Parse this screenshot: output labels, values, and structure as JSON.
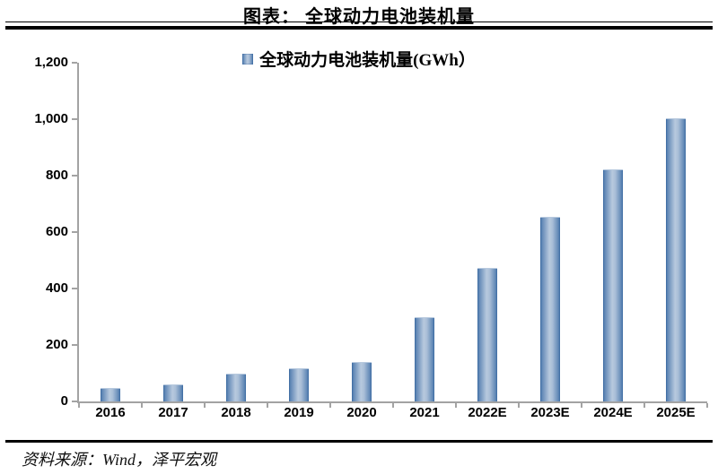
{
  "header": {
    "title": "图表：  全球动力电池装机量"
  },
  "legend": {
    "label": "全球动力电池装机量(GWh）",
    "swatch": "blue-gradient-square"
  },
  "footer": {
    "source": "资料来源：Wind，泽平宏观"
  },
  "colors": {
    "bar_edge": "#38679f",
    "bar_mid_dark": "#5d85b4",
    "bar_center_light": "#b7c9de",
    "bar_center_shade": "#a9bed7",
    "axis": "#a3a3a3",
    "text": "#000000"
  },
  "chart_data": {
    "type": "bar",
    "title": "全球动力电池装机量",
    "legend_entries": [
      "全球动力电池装机量(GWh）"
    ],
    "legend_position": "top-center",
    "categories": [
      "2016",
      "2017",
      "2018",
      "2019",
      "2020",
      "2021",
      "2022E",
      "2023E",
      "2024E",
      "2025E"
    ],
    "values": [
      43,
      58,
      95,
      115,
      135,
      295,
      470,
      650,
      820,
      1000
    ],
    "xlabel": "",
    "ylabel": "",
    "ylim": [
      0,
      1200
    ],
    "ytick_interval": 200,
    "ytick_labels": [
      "0",
      "200",
      "400",
      "600",
      "800",
      "1,000",
      "1,200"
    ],
    "grid": false
  }
}
